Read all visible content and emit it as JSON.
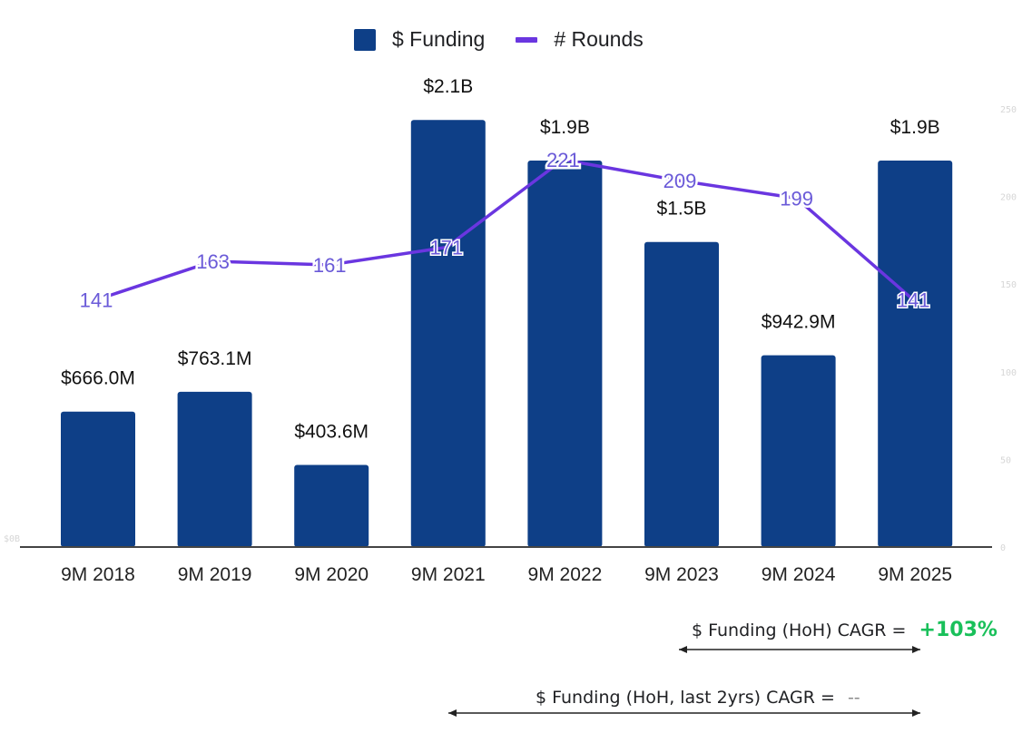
{
  "legend": {
    "funding_label": "$ Funding",
    "rounds_label": "# Rounds"
  },
  "colors": {
    "bar": "#0e3f87",
    "line": "#6a36e0",
    "line_label": "#6a5ad8",
    "axis": "#444444",
    "faint_tick": "#d6d6d6",
    "cagr_positive": "#19c05a",
    "cagr_na": "#8a8a8a"
  },
  "chart_data": {
    "type": "bar",
    "title": "",
    "xlabel": "",
    "ylabel": "",
    "categories": [
      "9M 2018",
      "9M 2019",
      "9M 2020",
      "9M 2021",
      "9M 2022",
      "9M 2023",
      "9M 2024",
      "9M 2025"
    ],
    "series": [
      {
        "name": "$ Funding",
        "type": "bar",
        "axis": "left",
        "unit": "USD billions",
        "values": [
          0.666,
          0.7631,
          0.4036,
          2.1,
          1.9,
          1.5,
          0.9429,
          1.9
        ],
        "labels": [
          "$666.0M",
          "$763.1M",
          "$403.6M",
          "$2.1B",
          "$1.9B",
          "$1.5B",
          "$942.9M",
          "$1.9B"
        ]
      },
      {
        "name": "# Rounds",
        "type": "line",
        "axis": "right",
        "values": [
          141,
          163,
          161,
          171,
          221,
          209,
          199,
          141
        ],
        "labels": [
          "141",
          "163",
          "161",
          "171",
          "221",
          "209",
          "199",
          "141"
        ]
      }
    ],
    "left_axis": {
      "range": [
        0,
        2.15
      ],
      "tick_labels": [
        "$0B"
      ]
    },
    "right_axis": {
      "range": [
        0,
        250
      ],
      "ticks": [
        0,
        50,
        100,
        150,
        200,
        250
      ],
      "tick_labels": [
        "0",
        "50",
        "100",
        "150",
        "200",
        "250"
      ]
    },
    "grid": false,
    "legend_position": "top-center"
  },
  "annotations": {
    "cagr_all": {
      "label": "$ Funding (HoH) CAGR =",
      "value": "+103%"
    },
    "cagr_2yr": {
      "label": "$ Funding (HoH, last 2yrs) CAGR =",
      "value": "--"
    }
  }
}
